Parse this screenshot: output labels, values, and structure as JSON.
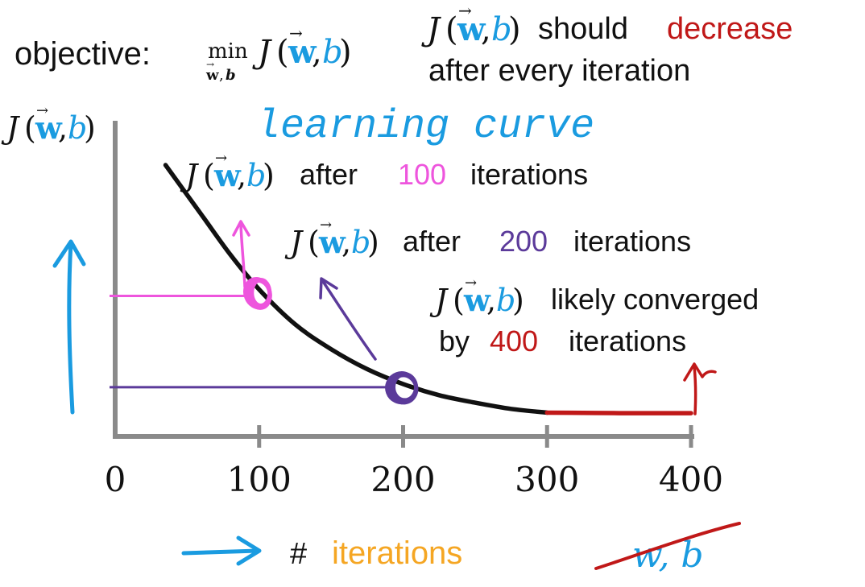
{
  "colors": {
    "black": "#111111",
    "axis": "#8a8a8a",
    "pink": "#ee55dd",
    "purple": "#5b3a9a",
    "red": "#c01818",
    "blue": "#1a9be0",
    "orange": "#f5a623"
  },
  "header": {
    "objective_label": "objective:",
    "min_word": "min",
    "min_sub_w": "w",
    "min_sub_comma": ",",
    "min_sub_b": "b",
    "should": "should",
    "decrease": "decrease",
    "after_every": "after every iteration"
  },
  "cost": {
    "J": "J",
    "open": "(",
    "w": "w",
    "comma": ",",
    "b": "b",
    "close": ")"
  },
  "y_axis_label_parts": {
    "J": "J",
    "open": "(",
    "w": "w",
    "comma": ",",
    "b": "b",
    "close": ")"
  },
  "learning_curve_label": "learning curve",
  "annotations": {
    "a100_pre": "after",
    "a100_num": "100",
    "a100_post": "iterations",
    "a200_pre": "after",
    "a200_num": "200",
    "a200_post": "iterations",
    "a400_line1": "likely converged",
    "a400_pre": "by",
    "a400_num": "400",
    "a400_post": "iterations"
  },
  "x_axis": {
    "hash": "#",
    "label": "iterations",
    "crossed_out": "w, b"
  },
  "chart_data": {
    "type": "line",
    "xlabel": "# iterations",
    "ylabel": "J(w,b)",
    "title": "",
    "xlim": [
      0,
      400
    ],
    "x_ticks": [
      0,
      100,
      200,
      300,
      400
    ],
    "x_tick_labels": [
      "0",
      "100",
      "200",
      "300",
      "400"
    ],
    "grid": false,
    "series": [
      {
        "x": [
          35,
          60,
          80,
          100,
          125,
          150,
          175,
          200,
          225,
          250,
          275,
          300,
          325,
          350,
          375,
          400
        ],
        "values": [
          1.0,
          0.8,
          0.64,
          0.5,
          0.36,
          0.26,
          0.18,
          0.12,
          0.075,
          0.045,
          0.02,
          0.005,
          0.004,
          0.003,
          0.003,
          0.003
        ]
      }
    ],
    "highlighted_points": [
      {
        "x": 100,
        "y": 0.5
      },
      {
        "x": 200,
        "y": 0.12
      }
    ],
    "converged_from_x": 300
  }
}
